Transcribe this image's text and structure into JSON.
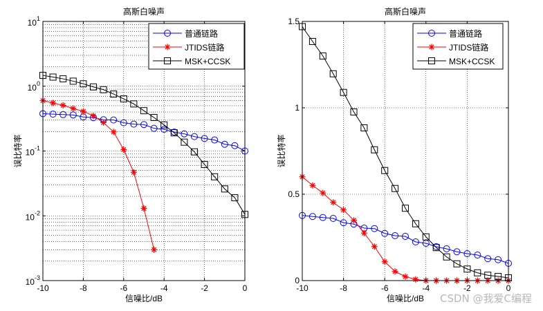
{
  "watermark": "CSDN @我爱C编程",
  "chart_data": [
    {
      "type": "line",
      "title": "高斯白噪声",
      "xlabel": "信噪比/dB",
      "ylabel": "误比特率",
      "yscale": "log",
      "xlim": [
        -10,
        0
      ],
      "ylim": [
        0.001,
        10
      ],
      "xticks": [
        -10,
        -8,
        -6,
        -4,
        -2,
        0
      ],
      "xtick_labels": [
        "-10",
        "-8",
        "-6",
        "-4",
        "-2",
        "0"
      ],
      "yticks": [
        0.001,
        0.01,
        0.1,
        1,
        10
      ],
      "ytick_labels": [
        [
          "10",
          "-3"
        ],
        [
          "10",
          "-2"
        ],
        [
          "10",
          "-1"
        ],
        [
          "10",
          "0"
        ],
        [
          "10",
          "1"
        ]
      ],
      "grid": true,
      "legend": "top-right",
      "x": [
        -10,
        -9.5,
        -9,
        -8.5,
        -8,
        -7.5,
        -7,
        -6.5,
        -6,
        -5.5,
        -5,
        -4.5,
        -4,
        -3.5,
        -3,
        -2.5,
        -2,
        -1.5,
        -1,
        -0.5,
        0
      ],
      "series": [
        {
          "name": "普通链路",
          "color": "#0000ff",
          "marker": "circle",
          "values": [
            0.377,
            0.371,
            0.365,
            0.36,
            0.335,
            0.327,
            0.304,
            0.301,
            0.273,
            0.26,
            0.256,
            0.224,
            0.216,
            0.196,
            0.184,
            0.167,
            0.156,
            0.148,
            0.127,
            0.121,
            0.1
          ]
        },
        {
          "name": "JTIDS链路",
          "color": "#ff0000",
          "marker": "star",
          "values": [
            0.601,
            0.551,
            0.507,
            0.453,
            0.409,
            0.349,
            0.275,
            0.197,
            0.105,
            0.047,
            0.013,
            0.003,
            null,
            null,
            null,
            null,
            null,
            null,
            null,
            null,
            null
          ]
        },
        {
          "name": "MSK+CCSK",
          "color": "#000000",
          "marker": "square",
          "values": [
            1.47,
            1.384,
            1.3,
            1.197,
            1.089,
            0.976,
            0.884,
            0.757,
            0.637,
            0.533,
            0.419,
            0.329,
            0.253,
            0.191,
            0.137,
            0.097,
            0.062,
            0.04,
            0.026,
            0.019,
            0.0105
          ]
        }
      ]
    },
    {
      "type": "line",
      "title": "高斯白噪声",
      "xlabel": "信噪比/dB",
      "ylabel": "误比特率",
      "yscale": "linear",
      "xlim": [
        -10,
        0
      ],
      "ylim": [
        0,
        1.5
      ],
      "xticks": [
        -10,
        -8,
        -6,
        -4,
        -2,
        0
      ],
      "xtick_labels": [
        "-10",
        "-8",
        "-6",
        "-4",
        "-2",
        "0"
      ],
      "yticks": [
        0,
        0.5,
        1,
        1.5
      ],
      "ytick_labels": [
        "0",
        "0.5",
        "1",
        "1.5"
      ],
      "grid": true,
      "legend": "top-right",
      "x": [
        -10,
        -9.5,
        -9,
        -8.5,
        -8,
        -7.5,
        -7,
        -6.5,
        -6,
        -5.5,
        -5,
        -4.5,
        -4,
        -3.5,
        -3,
        -2.5,
        -2,
        -1.5,
        -1,
        -0.5,
        0
      ],
      "series": [
        {
          "name": "普通链路",
          "color": "#0000ff",
          "marker": "circle",
          "values": [
            0.377,
            0.371,
            0.365,
            0.36,
            0.335,
            0.327,
            0.304,
            0.301,
            0.273,
            0.26,
            0.256,
            0.224,
            0.216,
            0.196,
            0.184,
            0.167,
            0.156,
            0.148,
            0.127,
            0.121,
            0.1
          ]
        },
        {
          "name": "JTIDS链路",
          "color": "#ff0000",
          "marker": "star",
          "values": [
            0.601,
            0.551,
            0.507,
            0.453,
            0.409,
            0.349,
            0.275,
            0.197,
            0.109,
            0.053,
            0.023,
            0.007,
            0,
            0,
            0,
            0,
            0,
            0,
            0,
            0,
            0
          ]
        },
        {
          "name": "MSK+CCSK",
          "color": "#000000",
          "marker": "square",
          "values": [
            1.47,
            1.384,
            1.3,
            1.197,
            1.089,
            0.976,
            0.884,
            0.757,
            0.637,
            0.533,
            0.419,
            0.329,
            0.253,
            0.191,
            0.137,
            0.097,
            0.067,
            0.045,
            0.031,
            0.024,
            0.016
          ]
        }
      ]
    }
  ]
}
